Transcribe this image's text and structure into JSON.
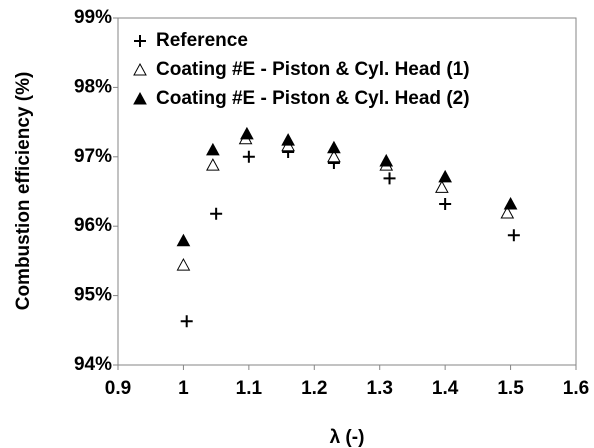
{
  "chart_data": {
    "type": "scatter",
    "xlabel": "λ (-)",
    "ylabel": "Combustion efficiency (%)",
    "xlim": [
      0.9,
      1.6
    ],
    "xticks": [
      0.9,
      1,
      1.1,
      1.2,
      1.3,
      1.4,
      1.5,
      1.6
    ],
    "ylim": [
      94,
      99
    ],
    "yticks": [
      {
        "value": 94,
        "label": "94%"
      },
      {
        "value": 95,
        "label": "95%"
      },
      {
        "value": 96,
        "label": "96%"
      },
      {
        "value": 97,
        "label": "97%"
      },
      {
        "value": 98,
        "label": "98%"
      },
      {
        "value": 99,
        "label": "99%"
      }
    ],
    "legend": "upper left",
    "series": [
      {
        "name": "Reference",
        "marker": "plus",
        "color": "#000000",
        "x": [
          1.005,
          1.05,
          1.1,
          1.16,
          1.23,
          1.315,
          1.4,
          1.505
        ],
        "values": [
          94.63,
          96.18,
          97.0,
          97.07,
          96.91,
          96.69,
          96.32,
          95.87
        ]
      },
      {
        "name": "Coating #E - Piston & Cyl. Head (1)",
        "marker": "open-triangle",
        "color": "#000000",
        "x": [
          1.0,
          1.045,
          1.095,
          1.16,
          1.23,
          1.31,
          1.395,
          1.495
        ],
        "values": [
          95.44,
          96.88,
          97.26,
          97.16,
          97.0,
          96.88,
          96.56,
          96.19
        ]
      },
      {
        "name": "Coating #E - Piston & Cyl. Head (2)",
        "marker": "filled-triangle",
        "color": "#000000",
        "x": [
          1.0,
          1.045,
          1.097,
          1.16,
          1.23,
          1.31,
          1.4,
          1.5
        ],
        "values": [
          95.79,
          97.1,
          97.33,
          97.24,
          97.13,
          96.94,
          96.71,
          96.32
        ]
      }
    ]
  }
}
